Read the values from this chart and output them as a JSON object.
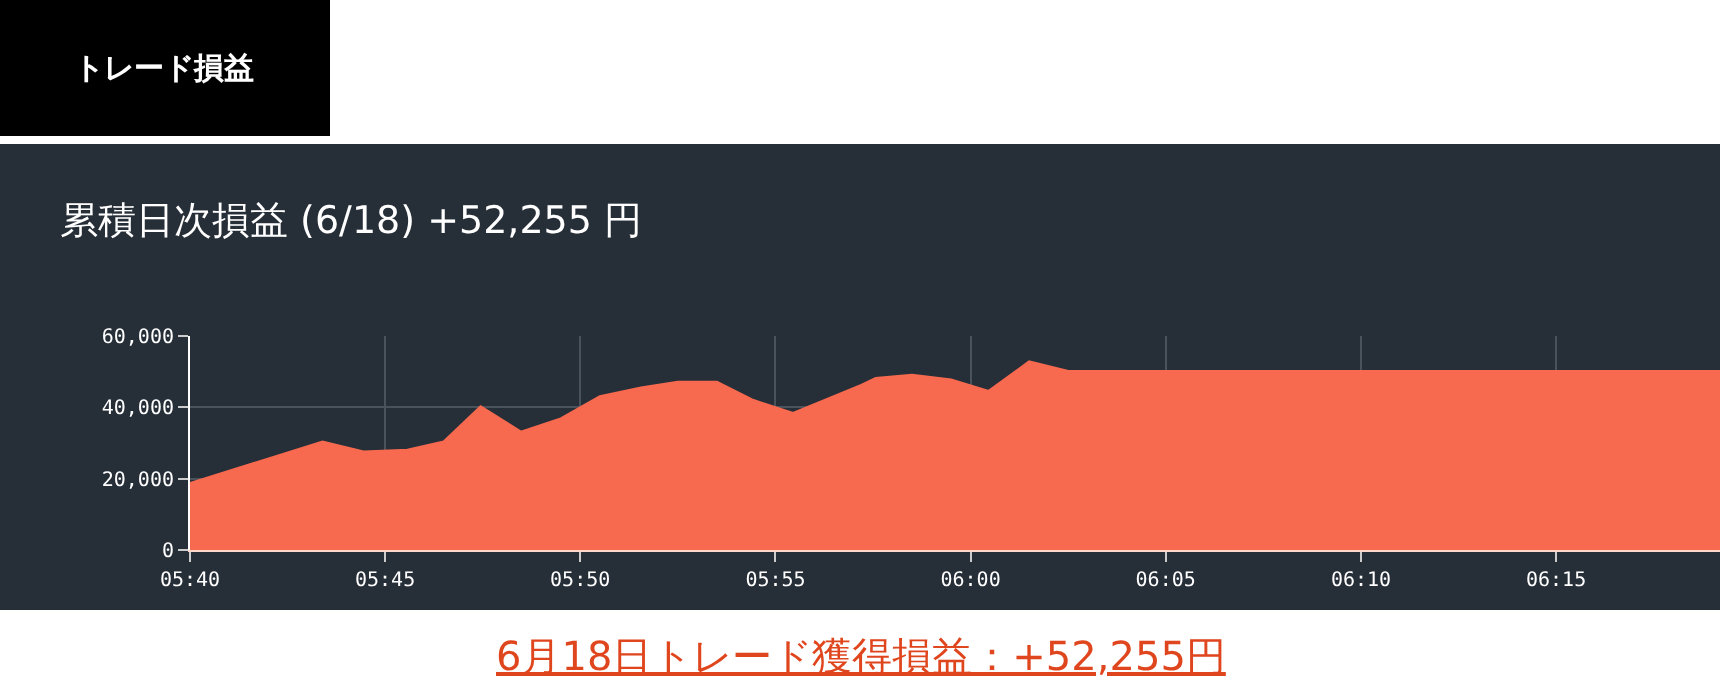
{
  "chart_data": {
    "type": "area",
    "title": "累積日次損益 (6/18) +52,255 円",
    "annotations": [
      "トレード損益",
      "6月18日トレード獲得損益：+52,255円"
    ],
    "x": [
      5.6667,
      5.7233,
      5.7408,
      5.7595,
      5.775,
      5.7908,
      5.808,
      5.825,
      5.8417,
      5.8593,
      5.875,
      5.8917,
      5.9067,
      5.9242,
      5.9533,
      5.9595,
      5.975,
      5.9917,
      6.0077,
      6.025,
      6.0417,
      6.32
    ],
    "series": [
      {
        "color": "#f76a4f",
        "values": [
          18800,
          30400,
          27600,
          28100,
          30400,
          40300,
          33200,
          36900,
          43100,
          45600,
          47200,
          47200,
          42200,
          38400,
          46300,
          48200,
          49100,
          47800,
          44600,
          52900,
          50200,
          50200
        ]
      }
    ],
    "xlim": [
      5.6667,
      6.32
    ],
    "xticks": [
      {
        "value": 5.6667,
        "label": "05:40"
      },
      {
        "value": 5.75,
        "label": "05:45"
      },
      {
        "value": 5.8333,
        "label": "05:50"
      },
      {
        "value": 5.9167,
        "label": "05:55"
      },
      {
        "value": 6.0,
        "label": "06:00"
      },
      {
        "value": 6.0833,
        "label": "06:05"
      },
      {
        "value": 6.1667,
        "label": "06:10"
      },
      {
        "value": 6.25,
        "label": "06:15"
      }
    ],
    "ylim": [
      0,
      60000
    ],
    "yticks": [
      {
        "value": 0,
        "label": "0"
      },
      {
        "value": 20000,
        "label": "20,000"
      },
      {
        "value": 40000,
        "label": "40,000"
      },
      {
        "value": 60000,
        "label": "60,000"
      }
    ],
    "grid": true,
    "legend": false
  }
}
